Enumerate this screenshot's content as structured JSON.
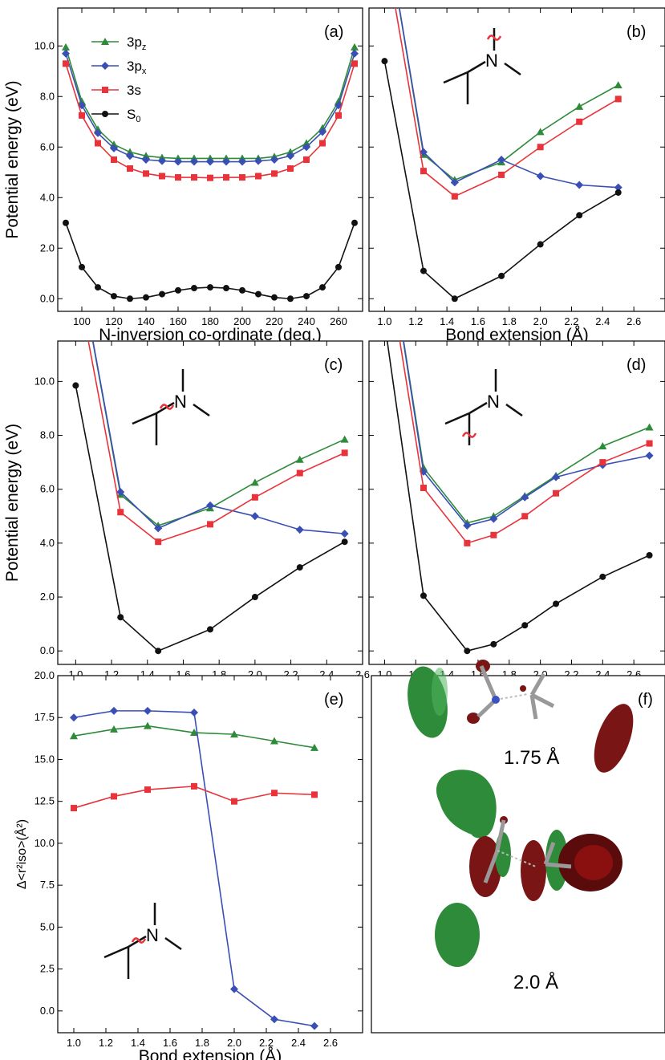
{
  "series_styles": {
    "s3pz": {
      "name": "3pz",
      "color": "#2e8b3a",
      "marker": "triangle"
    },
    "s3px": {
      "name": "3px",
      "color": "#3a4fb5",
      "marker": "diamond"
    },
    "s3s": {
      "name": "3s",
      "color": "#e8333a",
      "marker": "square"
    },
    "s0": {
      "name": "S0",
      "color": "#111111",
      "marker": "circle"
    }
  },
  "legend": [
    {
      "base": "3p",
      "sub": "z",
      "key": "s3pz"
    },
    {
      "base": "3p",
      "sub": "x",
      "key": "s3px"
    },
    {
      "base": "3s",
      "sub": "",
      "key": "s3s"
    },
    {
      "base": "S",
      "sub": "0",
      "key": "s0"
    }
  ],
  "chart_data": [
    {
      "id": "a",
      "type": "line",
      "label": "(a)",
      "xlabel": "N-inversion co-ordinate (deg.)",
      "ylabel": "Potential energy (eV)",
      "xlim": [
        85,
        275
      ],
      "ylim": [
        -0.5,
        11.5
      ],
      "xticks": [
        100,
        120,
        140,
        160,
        180,
        200,
        220,
        240,
        260
      ],
      "yticks": [
        0,
        2,
        4,
        6,
        8,
        10
      ],
      "ytick_labels": [
        "0.0",
        "2.0",
        "4.0",
        "6.0",
        "8.0",
        "10.0"
      ],
      "legend_position": "top-left",
      "series": [
        {
          "key": "s3pz",
          "x": [
            90,
            100,
            110,
            120,
            130,
            140,
            150,
            160,
            170,
            180,
            190,
            200,
            210,
            220,
            230,
            240,
            250,
            260,
            270
          ],
          "y": [
            9.95,
            7.8,
            6.7,
            6.1,
            5.8,
            5.65,
            5.58,
            5.55,
            5.55,
            5.55,
            5.55,
            5.55,
            5.55,
            5.62,
            5.8,
            6.15,
            6.75,
            7.8,
            9.95
          ]
        },
        {
          "key": "s3px",
          "x": [
            90,
            100,
            110,
            120,
            130,
            140,
            150,
            160,
            170,
            180,
            190,
            200,
            210,
            220,
            230,
            240,
            250,
            260,
            270
          ],
          "y": [
            9.7,
            7.65,
            6.55,
            5.95,
            5.65,
            5.5,
            5.45,
            5.42,
            5.42,
            5.42,
            5.42,
            5.42,
            5.45,
            5.5,
            5.65,
            6.0,
            6.6,
            7.65,
            9.7
          ]
        },
        {
          "key": "s3s",
          "x": [
            90,
            100,
            110,
            120,
            130,
            140,
            150,
            160,
            170,
            180,
            190,
            200,
            210,
            220,
            230,
            240,
            250,
            260,
            270
          ],
          "y": [
            9.3,
            7.25,
            6.15,
            5.5,
            5.15,
            4.95,
            4.85,
            4.8,
            4.8,
            4.78,
            4.8,
            4.8,
            4.85,
            4.95,
            5.15,
            5.5,
            6.15,
            7.25,
            9.3
          ]
        },
        {
          "key": "s0",
          "x": [
            90,
            100,
            110,
            120,
            130,
            140,
            150,
            160,
            170,
            180,
            190,
            200,
            210,
            220,
            230,
            240,
            250,
            260,
            270
          ],
          "y": [
            3.0,
            1.25,
            0.45,
            0.1,
            0.0,
            0.05,
            0.18,
            0.33,
            0.42,
            0.45,
            0.42,
            0.33,
            0.18,
            0.05,
            0.0,
            0.1,
            0.45,
            1.25,
            3.0
          ]
        }
      ]
    },
    {
      "id": "b",
      "type": "line",
      "label": "(b)",
      "xlabel": "Bond extension (Å)",
      "ylabel": "",
      "xlim": [
        0.9,
        2.8
      ],
      "ylim": [
        -0.5,
        11.5
      ],
      "xticks": [
        1.0,
        1.2,
        1.4,
        1.6,
        1.8,
        2.0,
        2.2,
        2.4,
        2.6
      ],
      "xtick_labels": [
        "1.0",
        "1.2",
        "1.4",
        "1.6",
        "1.8",
        "2.0",
        "2.2",
        "2.4",
        "2.6"
      ],
      "yticks": [
        0,
        2,
        4,
        6,
        8,
        10
      ],
      "ytick_labels": [
        "",
        "",
        "",
        "",
        "",
        ""
      ],
      "molecule": "top-bond",
      "series": [
        {
          "key": "s3pz",
          "x": [
            1.0,
            1.25,
            1.45,
            1.75,
            2.0,
            2.25,
            2.5
          ],
          "y": [
            15.0,
            5.7,
            4.7,
            5.4,
            6.6,
            7.6,
            8.45
          ]
        },
        {
          "key": "s3px",
          "x": [
            1.0,
            1.25,
            1.45,
            1.75,
            2.0,
            2.25,
            2.5
          ],
          "y": [
            15.0,
            5.8,
            4.6,
            5.5,
            4.85,
            4.5,
            4.4
          ]
        },
        {
          "key": "s3s",
          "x": [
            1.0,
            1.25,
            1.45,
            1.75,
            2.0,
            2.25,
            2.5
          ],
          "y": [
            14.0,
            5.05,
            4.05,
            4.9,
            6.0,
            7.0,
            7.9
          ]
        },
        {
          "key": "s0",
          "x": [
            1.0,
            1.25,
            1.45,
            1.75,
            2.0,
            2.25,
            2.5
          ],
          "y": [
            9.4,
            1.1,
            0.0,
            0.9,
            2.15,
            3.3,
            4.2
          ]
        }
      ]
    },
    {
      "id": "c",
      "type": "line",
      "label": "(c)",
      "xlabel": "Bond extension (Å)",
      "ylabel": "Potential energy (eV)",
      "xlim": [
        0.9,
        2.6
      ],
      "ylim": [
        -0.5,
        11.5
      ],
      "xticks": [
        1.0,
        1.2,
        1.4,
        1.6,
        1.8,
        2.0,
        2.2,
        2.4,
        2.6
      ],
      "xtick_labels": [
        "1.0",
        "1.2",
        "1.4",
        "1.6",
        "1.8",
        "2.0",
        "2.2",
        "2.4",
        "2.6"
      ],
      "yticks": [
        0,
        2,
        4,
        6,
        8,
        10
      ],
      "ytick_labels": [
        "0.0",
        "2.0",
        "4.0",
        "6.0",
        "8.0",
        "10.0"
      ],
      "molecule": "side-bond",
      "series": [
        {
          "key": "s3pz",
          "x": [
            1.0,
            1.25,
            1.46,
            1.75,
            2.0,
            2.25,
            2.5
          ],
          "y": [
            15.0,
            5.8,
            4.65,
            5.3,
            6.25,
            7.1,
            7.85
          ]
        },
        {
          "key": "s3px",
          "x": [
            1.0,
            1.25,
            1.46,
            1.75,
            2.0,
            2.25,
            2.5
          ],
          "y": [
            15.0,
            5.9,
            4.55,
            5.4,
            5.0,
            4.5,
            4.35
          ]
        },
        {
          "key": "s3s",
          "x": [
            1.0,
            1.25,
            1.46,
            1.75,
            2.0,
            2.25,
            2.5
          ],
          "y": [
            14.0,
            5.15,
            4.05,
            4.7,
            5.7,
            6.6,
            7.35
          ]
        },
        {
          "key": "s0",
          "x": [
            1.0,
            1.25,
            1.46,
            1.75,
            2.0,
            2.25,
            2.5
          ],
          "y": [
            9.85,
            1.25,
            0.0,
            0.8,
            2.0,
            3.1,
            4.05
          ]
        }
      ]
    },
    {
      "id": "d",
      "type": "line",
      "label": "(d)",
      "xlabel": "Bond extension (Å)",
      "ylabel": "",
      "xlim": [
        0.9,
        2.8
      ],
      "ylim": [
        -0.5,
        11.5
      ],
      "xticks": [
        1.0,
        1.2,
        1.4,
        1.6,
        1.8,
        2.0,
        2.2,
        2.4,
        2.6
      ],
      "xtick_labels": [
        "1.0",
        "1.2",
        "1.4",
        "1.6",
        "1.8",
        "2.0",
        "2.2",
        "2.4",
        "2.6"
      ],
      "yticks": [
        0,
        2,
        4,
        6,
        8,
        10
      ],
      "ytick_labels": [
        "",
        "",
        "",
        "",
        "",
        ""
      ],
      "molecule": "bottom-bond",
      "series": [
        {
          "key": "s3pz",
          "x": [
            1.0,
            1.25,
            1.53,
            1.7,
            1.9,
            2.1,
            2.4,
            2.7
          ],
          "y": [
            16.0,
            6.8,
            4.75,
            5.0,
            5.75,
            6.5,
            7.6,
            8.3
          ]
        },
        {
          "key": "s3px",
          "x": [
            1.0,
            1.25,
            1.53,
            1.7,
            1.9,
            2.1,
            2.4,
            2.7
          ],
          "y": [
            16.0,
            6.65,
            4.65,
            4.9,
            5.7,
            6.45,
            6.9,
            7.25
          ]
        },
        {
          "key": "s3s",
          "x": [
            1.0,
            1.25,
            1.53,
            1.7,
            1.9,
            2.1,
            2.4,
            2.7
          ],
          "y": [
            15.0,
            6.05,
            4.0,
            4.3,
            5.0,
            5.85,
            7.0,
            7.7
          ]
        },
        {
          "key": "s0",
          "x": [
            0.98,
            1.25,
            1.53,
            1.7,
            1.9,
            2.1,
            2.4,
            2.7
          ],
          "y": [
            13.0,
            2.05,
            0.0,
            0.25,
            0.95,
            1.75,
            2.75,
            3.55
          ]
        }
      ]
    },
    {
      "id": "e",
      "type": "line",
      "label": "(e)",
      "xlabel": "Bond extension (Å)",
      "ylabel": "Δ<r²iso>(Å²)",
      "xlim": [
        0.9,
        2.8
      ],
      "ylim": [
        -1.3,
        20.0
      ],
      "xticks": [
        1.0,
        1.2,
        1.4,
        1.6,
        1.8,
        2.0,
        2.2,
        2.4,
        2.6
      ],
      "xtick_labels": [
        "1.0",
        "1.2",
        "1.4",
        "1.6",
        "1.8",
        "2.0",
        "2.2",
        "2.4",
        "2.6"
      ],
      "yticks": [
        0,
        2.5,
        5,
        7.5,
        10,
        12.5,
        15,
        17.5,
        20
      ],
      "ytick_labels": [
        "0.0",
        "2.5",
        "5.0",
        "7.5",
        "10.0",
        "12.5",
        "15.0",
        "17.5",
        "20.0"
      ],
      "molecule": "side-bond",
      "series": [
        {
          "key": "s3pz",
          "x": [
            1.0,
            1.25,
            1.46,
            1.75,
            2.0,
            2.25,
            2.5
          ],
          "y": [
            16.4,
            16.8,
            17.0,
            16.6,
            16.5,
            16.1,
            15.7
          ]
        },
        {
          "key": "s3px",
          "x": [
            1.0,
            1.25,
            1.46,
            1.75,
            2.0,
            2.25,
            2.5
          ],
          "y": [
            17.5,
            17.9,
            17.9,
            17.8,
            1.3,
            -0.5,
            -0.9
          ]
        },
        {
          "key": "s3s",
          "x": [
            1.0,
            1.25,
            1.46,
            1.75,
            2.0,
            2.25,
            2.5
          ],
          "y": [
            12.1,
            12.8,
            13.2,
            13.4,
            12.5,
            13.0,
            12.9
          ]
        }
      ]
    }
  ],
  "panel_f": {
    "label": "(f)",
    "caption_top": "1.75 Å",
    "caption_bottom": "2.0 Å",
    "lobe_green": "#2e8b3a",
    "lobe_red": "#7a1515"
  }
}
